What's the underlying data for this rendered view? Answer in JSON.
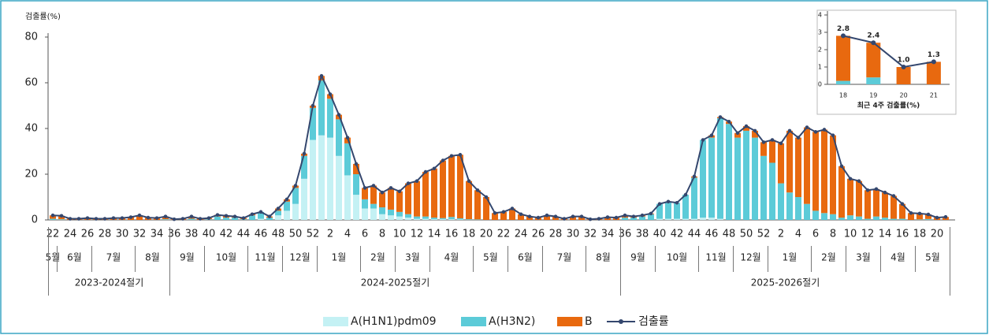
{
  "chart_data": [
    {
      "type": "bar",
      "stacked": true,
      "ylabel": "검출률(%)",
      "ylim": [
        0,
        80
      ],
      "yticks": [
        0,
        20,
        40,
        60,
        80
      ],
      "categories": [
        "22",
        null,
        "24",
        null,
        "26",
        null,
        "28",
        null,
        "30",
        null,
        "32",
        null,
        "34",
        null,
        "36",
        null,
        "38",
        null,
        "40",
        null,
        "42",
        null,
        "44",
        null,
        "46",
        null,
        "48",
        null,
        "50",
        null,
        "52",
        null,
        "2",
        null,
        "4",
        null,
        "6",
        null,
        "8",
        null,
        "10",
        null,
        "12",
        null,
        "14",
        null,
        "16",
        null,
        "18",
        null,
        "20",
        null,
        "22",
        null,
        "24",
        null,
        "26",
        null,
        "28",
        null,
        "30",
        null,
        "32",
        null,
        "34",
        null,
        "36",
        null,
        "38",
        null,
        "40",
        null,
        "42",
        null,
        "44",
        null,
        "46",
        null,
        "48",
        null,
        "50",
        null,
        "52",
        null,
        "2",
        null,
        "4",
        null,
        "6",
        null,
        "8",
        null,
        "10",
        null,
        "12",
        null,
        "14",
        null,
        "16",
        null,
        "18",
        null,
        "20",
        null
      ],
      "months": [
        {
          "label": "5월",
          "weeks": 1
        },
        {
          "label": "6월",
          "weeks": 4
        },
        {
          "label": "7월",
          "weeks": 5
        },
        {
          "label": "8월",
          "weeks": 4
        },
        {
          "label": "9월",
          "weeks": 4
        },
        {
          "label": "10월",
          "weeks": 5
        },
        {
          "label": "11월",
          "weeks": 4
        },
        {
          "label": "12월",
          "weeks": 4
        },
        {
          "label": "1월",
          "weeks": 5
        },
        {
          "label": "2월",
          "weeks": 4
        },
        {
          "label": "3월",
          "weeks": 4
        },
        {
          "label": "4월",
          "weeks": 5
        },
        {
          "label": "5월",
          "weeks": 4
        },
        {
          "label": "6월",
          "weeks": 4
        },
        {
          "label": "7월",
          "weeks": 5
        },
        {
          "label": "8월",
          "weeks": 4
        },
        {
          "label": "9월",
          "weeks": 4
        },
        {
          "label": "10월",
          "weeks": 5
        },
        {
          "label": "11월",
          "weeks": 4
        },
        {
          "label": "12월",
          "weeks": 4
        },
        {
          "label": "1월",
          "weeks": 5
        },
        {
          "label": "2월",
          "weeks": 4
        },
        {
          "label": "3월",
          "weeks": 4
        },
        {
          "label": "4월",
          "weeks": 4
        },
        {
          "label": "5월",
          "weeks": 4
        }
      ],
      "seasons": [
        {
          "label": "2023-2024절기",
          "weeks": 14
        },
        {
          "label": "2024-2025절기",
          "weeks": 52
        },
        {
          "label": "2025-2026절기",
          "weeks": 38
        }
      ],
      "series": [
        {
          "name": "A(H1N1)pdm09",
          "color": "#c4f1f4",
          "values": [
            0,
            0,
            0,
            0,
            0,
            0,
            0,
            0,
            0,
            0,
            0,
            0,
            0,
            0,
            0,
            0,
            0,
            0,
            0,
            0,
            0,
            0,
            0,
            0,
            0.5,
            0,
            2,
            4,
            7,
            18,
            35,
            37,
            36,
            28,
            19.5,
            11,
            5,
            5,
            2.5,
            2,
            1.5,
            1,
            0.5,
            0.5,
            0.3,
            0.3,
            0.3,
            0.2,
            0,
            0,
            0,
            0,
            0,
            0,
            0,
            0,
            0,
            0,
            0,
            0,
            0,
            0,
            0,
            0,
            0,
            0,
            0,
            0,
            0,
            0,
            0.5,
            0.5,
            0.5,
            0.5,
            0.5,
            1,
            1,
            0.5,
            0,
            0,
            0,
            0,
            0,
            0,
            0,
            0,
            0,
            0,
            0,
            0,
            0,
            0,
            0,
            0,
            0,
            0,
            0,
            0,
            0,
            0,
            0,
            0,
            0,
            0
          ]
        },
        {
          "name": "A(H3N2)",
          "color": "#5ccbd8",
          "values": [
            0.5,
            0.3,
            0,
            0,
            0,
            0,
            0,
            0,
            0,
            0,
            0,
            0,
            0,
            0.3,
            0,
            0,
            0.5,
            0,
            0.3,
            1.5,
            1,
            1,
            0.3,
            2,
            3,
            1,
            2,
            4,
            7,
            10,
            14,
            24,
            17,
            16,
            14,
            9,
            4,
            2,
            3,
            2.5,
            2,
            1.5,
            1,
            1,
            0.7,
            0.5,
            1,
            0.5,
            0.3,
            0.2,
            0,
            0,
            0,
            0,
            0,
            0,
            0,
            0,
            0,
            0,
            0,
            0,
            0,
            0,
            0,
            0,
            1,
            1,
            1.5,
            2.5,
            6.5,
            7.5,
            7,
            10.5,
            18,
            34,
            35,
            44,
            42,
            36,
            39,
            36,
            28,
            25,
            16,
            12,
            10,
            7,
            4,
            3,
            2.5,
            1,
            2,
            1.5,
            0.5,
            1.5,
            1,
            0.5,
            0.5,
            0,
            0.2,
            0.4,
            0,
            0
          ]
        },
        {
          "name": "B",
          "color": "#e8690f",
          "values": [
            1.5,
            1.5,
            0.5,
            0.5,
            0.8,
            0.5,
            0.5,
            0.8,
            0.8,
            1.2,
            2.0,
            1.0,
            0.8,
            1.2,
            0.3,
            0.5,
            1,
            0.5,
            0.5,
            0.7,
            0.8,
            0.5,
            0.5,
            0.5,
            0,
            0.5,
            1,
            1,
            1,
            1,
            1,
            2,
            2,
            2,
            2.5,
            4.5,
            5,
            8,
            6.5,
            9.5,
            9,
            13.5,
            15.5,
            19.5,
            21.5,
            25.2,
            26.7,
            27.8,
            16.7,
            12.8,
            10,
            3,
            3.5,
            5,
            2.5,
            1.5,
            1,
            2,
            1.5,
            0.5,
            1.5,
            1.5,
            0.3,
            0.5,
            1.2,
            1.0,
            1,
            0.5,
            0.5,
            0.3,
            0,
            0,
            0,
            0,
            0.5,
            0,
            1,
            0.5,
            1,
            2,
            2,
            3,
            6,
            10,
            17.5,
            27,
            26,
            33.5,
            34.5,
            36.5,
            34.5,
            22.5,
            16,
            15.5,
            12.5,
            12,
            11,
            10,
            6.5,
            3,
            2.6,
            2,
            1,
            1.3
          ]
        },
        {
          "name": "검출률",
          "type": "line",
          "color": "#34476e",
          "values": [
            2.0,
            1.8,
            0.5,
            0.5,
            0.8,
            0.5,
            0.5,
            0.8,
            0.8,
            1.2,
            2.0,
            1.0,
            0.8,
            1.5,
            0.3,
            0.5,
            1.5,
            0.5,
            0.8,
            2.2,
            1.8,
            1.5,
            0.8,
            2.5,
            3.5,
            1.5,
            5,
            9,
            15,
            29,
            50,
            63,
            55,
            46,
            36,
            24.5,
            14,
            15,
            12,
            14,
            12.5,
            16,
            17,
            21,
            22.5,
            26,
            28,
            28.5,
            17,
            13,
            10,
            3,
            3.5,
            5,
            2.5,
            1.5,
            1,
            2,
            1.5,
            0.5,
            1.5,
            1.5,
            0.3,
            0.5,
            1.2,
            1.0,
            2.0,
            1.5,
            2.0,
            2.8,
            7,
            8,
            7.5,
            11,
            19,
            35,
            37,
            45,
            43,
            38,
            41,
            39,
            34,
            35,
            33.5,
            39,
            36,
            40.5,
            38.5,
            39.5,
            37,
            23.5,
            18,
            17,
            13,
            13.5,
            12,
            10.5,
            7,
            3,
            2.8,
            2.4,
            1.0,
            1.3
          ]
        }
      ]
    },
    {
      "type": "bar",
      "stacked": true,
      "xlabel": "최근 4주 검출률(%)",
      "ylim": [
        0,
        4
      ],
      "yticks": [
        0,
        1,
        2,
        3,
        4
      ],
      "categories": [
        "18",
        "19",
        "20",
        "21"
      ],
      "series": [
        {
          "name": "A(H3N2)",
          "color": "#5ccbd8",
          "values": [
            0.2,
            0.4,
            0,
            0
          ]
        },
        {
          "name": "B",
          "color": "#e8690f",
          "values": [
            2.6,
            2.0,
            1.0,
            1.3
          ]
        },
        {
          "name": "검출률",
          "type": "line",
          "color": "#34476e",
          "values": [
            2.8,
            2.4,
            1.0,
            1.3
          ],
          "value_labels": [
            "2.8",
            "2.4",
            "1.0",
            "1.3"
          ]
        }
      ]
    }
  ]
}
